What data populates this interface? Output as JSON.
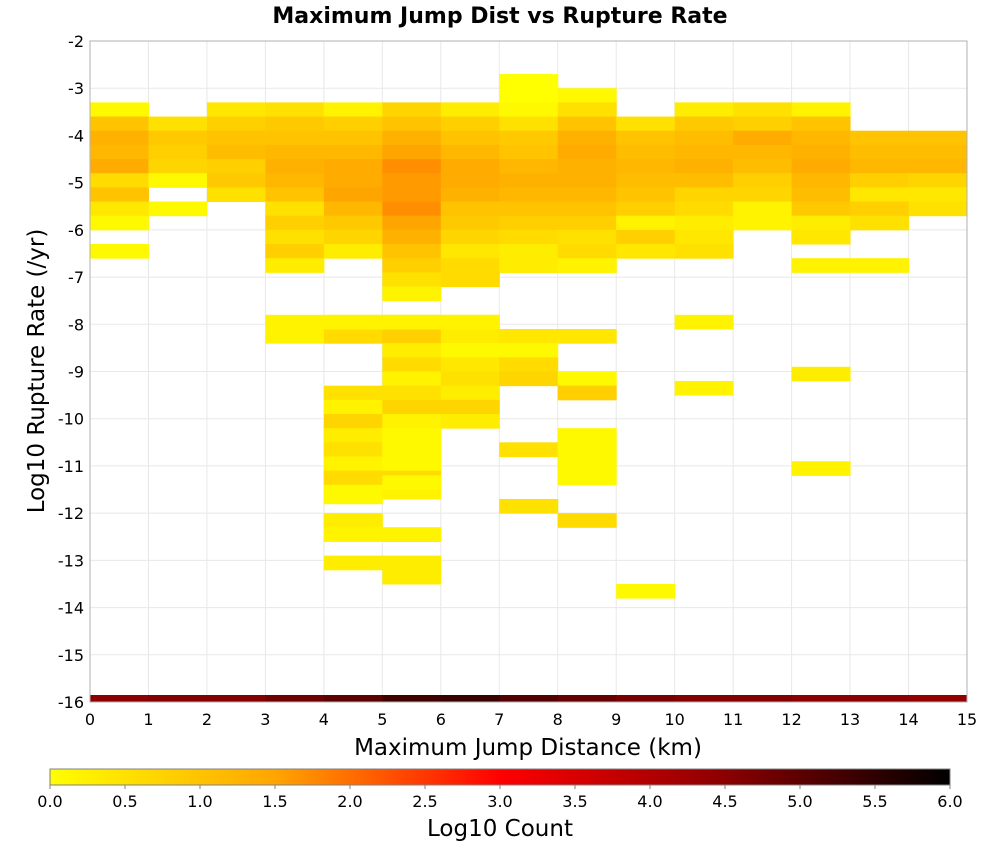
{
  "chart_data": {
    "type": "heatmap",
    "title": "Maximum Jump Dist vs Rupture Rate",
    "xlabel": "Maximum Jump Distance (km)",
    "ylabel": "Log10 Rupture Rate (/yr)",
    "xlim": [
      0,
      15
    ],
    "ylim": [
      -16,
      -2
    ],
    "x_ticks": [
      "0",
      "1",
      "2",
      "3",
      "4",
      "5",
      "6",
      "7",
      "8",
      "9",
      "10",
      "11",
      "12",
      "13",
      "14",
      "15"
    ],
    "y_ticks": [
      "-2",
      "-3",
      "-4",
      "-5",
      "-6",
      "-7",
      "-8",
      "-9",
      "-10",
      "-11",
      "-12",
      "-13",
      "-14",
      "-15",
      "-16"
    ],
    "grid": true,
    "x_bin_width": 1,
    "y_bin_height": 0.3,
    "colorbar": {
      "label": "Log10 Count",
      "range": [
        0,
        6
      ],
      "ticks": [
        "0.0",
        "0.5",
        "1.0",
        "1.5",
        "2.0",
        "2.5",
        "3.0",
        "3.5",
        "4.0",
        "4.5",
        "5.0",
        "5.5",
        "6.0"
      ],
      "colors": [
        "#ffff00",
        "#ffa500",
        "#ff0000",
        "#000000"
      ]
    },
    "columns": [
      {
        "x": 0,
        "ymin": -3.3,
        "values": [
          0.1,
          1.0,
          1.3,
          1.2,
          1.4,
          0.6,
          1.0,
          0.4,
          0.1,
          null,
          0.1
        ]
      },
      {
        "x": 1,
        "ymin": -3.6,
        "values": [
          0.5,
          0.9,
          0.8,
          0.7,
          0.1,
          null,
          0.1
        ]
      },
      {
        "x": 2,
        "ymin": -3.3,
        "values": [
          0.4,
          0.8,
          1.0,
          1.1,
          0.8,
          0.9,
          0.5
        ]
      },
      {
        "x": 3,
        "ymin": -3.3,
        "values": [
          0.5,
          0.9,
          1.0,
          1.2,
          1.3,
          1.2,
          1.0,
          0.5,
          0.8,
          0.5,
          0.8,
          0.3,
          null,
          null,
          null,
          null,
          0.2
        ]
      },
      {
        "x": 4,
        "ymin": -3.3,
        "values": [
          0.2,
          0.8,
          1.0,
          1.2,
          1.4,
          1.4,
          1.5,
          1.2,
          0.9,
          0.7,
          0.3,
          null,
          null,
          null,
          null,
          0.3,
          0.6,
          null,
          null,
          null,
          0.5,
          0.2,
          0.7,
          0.3,
          0.5,
          0.2,
          0.6,
          0.1,
          null,
          0.3,
          null,
          null,
          0.3
        ]
      },
      {
        "x": 5,
        "ymin": -3.3,
        "values": [
          0.7,
          1.0,
          1.3,
          1.5,
          1.7,
          1.6,
          1.6,
          1.7,
          1.5,
          1.3,
          1.0,
          0.8,
          0.5,
          0.2,
          null,
          0.4,
          0.8,
          0.3,
          0.6,
          0.2,
          0.5,
          0.7,
          0.2,
          0.1,
          0.1,
          0.1,
          0.6,
          0.2,
          null,
          null,
          0.3,
          null,
          null,
          0.3
        ]
      },
      {
        "x": 6,
        "ymin": -3.3,
        "values": [
          0.3,
          0.8,
          1.0,
          1.2,
          1.4,
          1.4,
          1.3,
          1.0,
          0.9,
          0.7,
          0.4,
          0.6,
          0.6,
          null,
          null,
          0.1,
          0.3,
          0.1,
          0.4,
          0.5,
          0.3,
          0.7,
          0.3
        ]
      },
      {
        "x": 7,
        "ymin": -2.7,
        "values": [
          0.0,
          0.0,
          0.1,
          0.5,
          0.9,
          1.0,
          1.2,
          1.3,
          1.2,
          1.0,
          0.8,
          0.6,
          0.3,
          0.6,
          null,
          null,
          null,
          null,
          0.4,
          0.1,
          0.6,
          0.7,
          null,
          null,
          null,
          null,
          0.5,
          null,
          null,
          null,
          0.5
        ]
      },
      {
        "x": 8,
        "ymin": -3.0,
        "values": [
          0.1,
          0.5,
          1.0,
          1.3,
          1.4,
          1.3,
          1.3,
          1.2,
          1.0,
          0.8,
          0.5,
          0.6,
          0.4,
          null,
          null,
          null,
          null,
          0.4,
          null,
          null,
          0.1,
          0.8,
          null,
          null,
          0.1,
          0.1,
          0.1,
          0.1,
          null,
          null,
          0.6
        ]
      },
      {
        "x": 9,
        "ymin": -3.6,
        "values": [
          0.5,
          1.0,
          1.1,
          1.2,
          1.1,
          1.0,
          0.8,
          0.2,
          0.8,
          0.4
        ]
      },
      {
        "x": 10,
        "ymin": -3.3,
        "values": [
          0.3,
          0.9,
          1.1,
          1.2,
          1.3,
          1.1,
          0.7,
          0.6,
          0.3,
          0.4,
          0.5
        ]
      },
      {
        "x": 11,
        "ymin": -3.3,
        "values": [
          0.5,
          0.8,
          1.4,
          1.2,
          1.1,
          0.8,
          0.7,
          0.2,
          0.2
        ]
      },
      {
        "x": 12,
        "ymin": -3.3,
        "values": [
          0.2,
          1.0,
          1.2,
          1.3,
          1.4,
          1.2,
          1.1,
          0.9,
          0.3,
          0.4
        ]
      },
      {
        "x": 13,
        "ymin": -3.9,
        "values": [
          1.0,
          1.1,
          1.2,
          0.8,
          0.4,
          0.8,
          0.5
        ]
      },
      {
        "x": 14,
        "ymin": -3.9,
        "values": [
          1.0,
          1.1,
          1.2,
          0.7,
          0.4,
          0.5
        ]
      }
    ],
    "extra_cells": [
      {
        "x": 4,
        "y": -7.8,
        "value": 0.2
      },
      {
        "x": 5,
        "y": -7.8,
        "value": 0.2
      },
      {
        "x": 6,
        "y": -7.8,
        "value": 0.2
      },
      {
        "x": 3,
        "y": -7.8,
        "value": 0.2
      },
      {
        "x": 10,
        "y": -7.8,
        "value": 0.2
      },
      {
        "x": 12,
        "y": -6.6,
        "value": 0.2
      },
      {
        "x": 13,
        "y": -6.6,
        "value": 0.2
      },
      {
        "x": 7,
        "y": -6.6,
        "value": 0.3
      },
      {
        "x": 8,
        "y": -6.6,
        "value": 0.2
      },
      {
        "x": 12,
        "y": -8.9,
        "value": 0.3
      },
      {
        "x": 10,
        "y": -9.2,
        "value": 0.2
      },
      {
        "x": 12,
        "y": -10.9,
        "value": 0.2
      },
      {
        "x": 9,
        "y": -13.5,
        "value": 0.1
      },
      {
        "x": 5,
        "y": -12.9,
        "value": 0.3
      },
      {
        "x": 4,
        "y": -12.3,
        "value": 0.2
      },
      {
        "x": 5,
        "y": -12.3,
        "value": 0.2
      },
      {
        "x": 4,
        "y": -11.5,
        "value": 0.1
      },
      {
        "x": 5,
        "y": -11.2,
        "value": 0.1
      }
    ],
    "bottom_row": {
      "y": -16,
      "values": [
        4.5,
        4.6,
        4.6,
        4.8,
        5.0,
        5.3,
        5.4,
        5.1,
        4.9,
        4.7,
        4.6,
        4.6,
        4.5,
        4.5,
        4.4
      ]
    }
  }
}
